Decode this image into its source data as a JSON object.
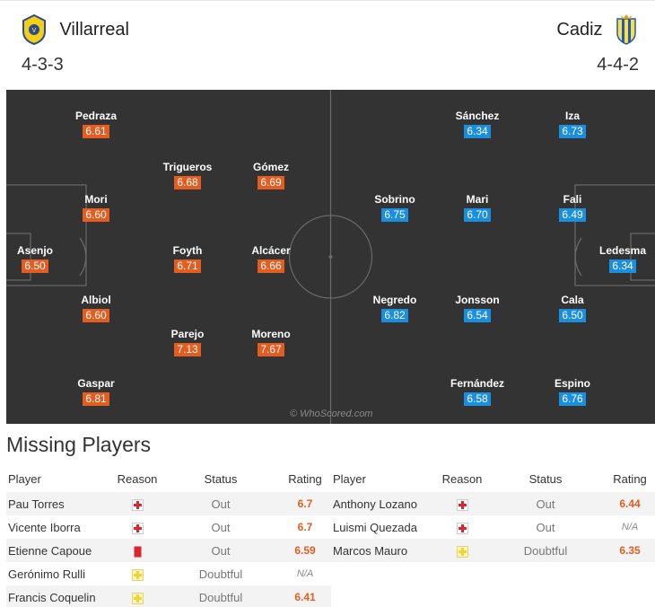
{
  "match": {
    "home": {
      "name": "Villarreal",
      "formation": "4-3-3",
      "rating_color": "#e35d20",
      "crest": "villarreal-crest-icon"
    },
    "away": {
      "name": "Cadiz",
      "formation": "4-4-2",
      "rating_color": "#1a8fe0",
      "crest": "cadiz-crest-icon"
    }
  },
  "pitch": {
    "watermark": "© WhoScored.com"
  },
  "players": {
    "home": [
      {
        "name": "Asenjo",
        "rating": "6.50"
      },
      {
        "name": "Pedraza",
        "rating": "6.61"
      },
      {
        "name": "Mori",
        "rating": "6.60"
      },
      {
        "name": "Albiol",
        "rating": "6.60"
      },
      {
        "name": "Gaspar",
        "rating": "6.81"
      },
      {
        "name": "Trigueros",
        "rating": "6.68"
      },
      {
        "name": "Foyth",
        "rating": "6.71"
      },
      {
        "name": "Parejo",
        "rating": "7.13"
      },
      {
        "name": "Gómez",
        "rating": "6.69"
      },
      {
        "name": "Alcácer",
        "rating": "6.66"
      },
      {
        "name": "Moreno",
        "rating": "7.67"
      }
    ],
    "away": [
      {
        "name": "Ledesma",
        "rating": "6.34"
      },
      {
        "name": "Iza",
        "rating": "6.73"
      },
      {
        "name": "Fali",
        "rating": "6.49"
      },
      {
        "name": "Cala",
        "rating": "6.50"
      },
      {
        "name": "Espino",
        "rating": "6.76"
      },
      {
        "name": "Sánchez",
        "rating": "6.34"
      },
      {
        "name": "Mari",
        "rating": "6.70"
      },
      {
        "name": "Jonsson",
        "rating": "6.54"
      },
      {
        "name": "Fernández",
        "rating": "6.58"
      },
      {
        "name": "Sobrino",
        "rating": "6.75"
      },
      {
        "name": "Negredo",
        "rating": "6.82"
      }
    ]
  },
  "missing": {
    "title": "Missing Players",
    "headers": {
      "player": "Player",
      "reason": "Reason",
      "status": "Status",
      "rating": "Rating"
    },
    "home": [
      {
        "player": "Pau Torres",
        "reason": "injury-cross-icon",
        "status": "Out",
        "rating": "6.7"
      },
      {
        "player": "Vicente Iborra",
        "reason": "injury-cross-icon",
        "status": "Out",
        "rating": "6.7"
      },
      {
        "player": "Etienne Capoue",
        "reason": "red-card-icon",
        "status": "Out",
        "rating": "6.59"
      },
      {
        "player": "Gerónimo Rulli",
        "reason": "doubtful-cross-icon",
        "status": "Doubtful",
        "rating": "N/A"
      },
      {
        "player": "Francis Coquelin",
        "reason": "doubtful-cross-icon",
        "status": "Doubtful",
        "rating": "6.41"
      }
    ],
    "away": [
      {
        "player": "Anthony Lozano",
        "reason": "injury-cross-icon",
        "status": "Out",
        "rating": "6.44"
      },
      {
        "player": "Luismi Quezada",
        "reason": "injury-cross-icon",
        "status": "Out",
        "rating": "N/A"
      },
      {
        "player": "Marcos Mauro",
        "reason": "doubtful-cross-icon",
        "status": "Doubtful",
        "rating": "6.35"
      }
    ]
  }
}
